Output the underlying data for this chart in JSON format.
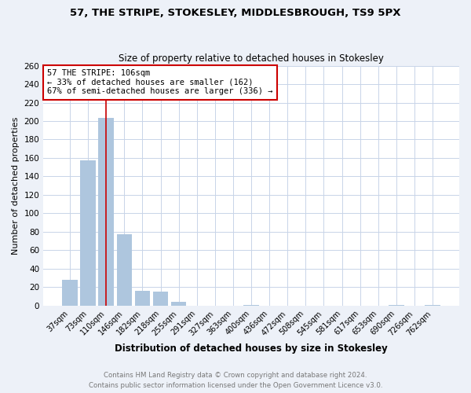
{
  "title1": "57, THE STRIPE, STOKESLEY, MIDDLESBROUGH, TS9 5PX",
  "title2": "Size of property relative to detached houses in Stokesley",
  "xlabel": "Distribution of detached houses by size in Stokesley",
  "ylabel": "Number of detached properties",
  "bar_labels": [
    "37sqm",
    "73sqm",
    "110sqm",
    "146sqm",
    "182sqm",
    "218sqm",
    "255sqm",
    "291sqm",
    "327sqm",
    "363sqm",
    "400sqm",
    "436sqm",
    "472sqm",
    "508sqm",
    "545sqm",
    "581sqm",
    "617sqm",
    "653sqm",
    "690sqm",
    "726sqm",
    "762sqm"
  ],
  "bar_values": [
    28,
    157,
    203,
    77,
    16,
    15,
    4,
    0,
    0,
    0,
    1,
    0,
    0,
    0,
    0,
    0,
    0,
    0,
    1,
    0,
    1
  ],
  "bar_color": "#aec6de",
  "vline_color": "#cc0000",
  "annotation_box_edgecolor": "#cc0000",
  "annotation_line1": "57 THE STRIPE: 106sqm",
  "annotation_line2": "← 33% of detached houses are smaller (162)",
  "annotation_line3": "67% of semi-detached houses are larger (336) →",
  "ylim_max": 260,
  "yticks": [
    0,
    20,
    40,
    60,
    80,
    100,
    120,
    140,
    160,
    180,
    200,
    220,
    240,
    260
  ],
  "footer1": "Contains HM Land Registry data © Crown copyright and database right 2024.",
  "footer2": "Contains public sector information licensed under the Open Government Licence v3.0.",
  "bg_color": "#edf1f8",
  "plot_bg_color": "#ffffff",
  "grid_color": "#c8d4e8"
}
